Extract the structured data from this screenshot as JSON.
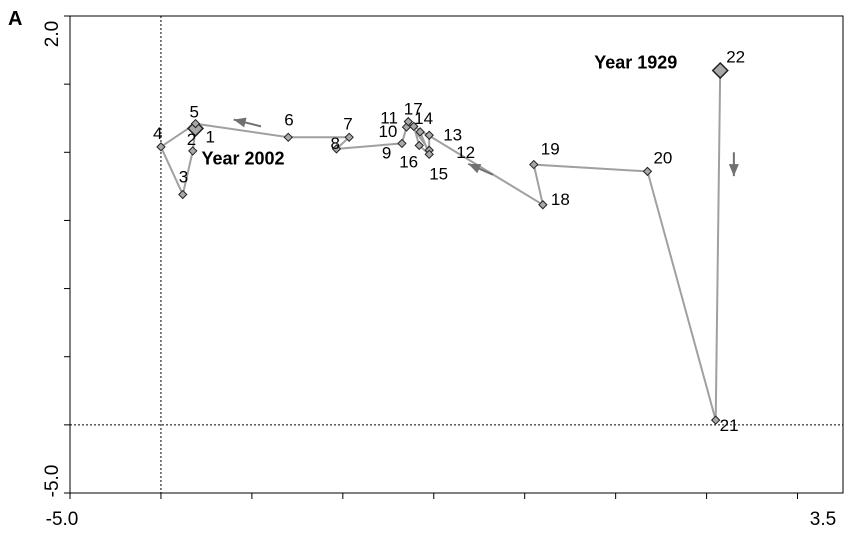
{
  "panel_label": "A",
  "chart_data": {
    "type": "scatter",
    "title": "",
    "xlabel": "",
    "ylabel": "",
    "xlim": [
      -5.0,
      3.5
    ],
    "ylim": [
      -5.0,
      2.0
    ],
    "x_tick_labels": [
      "-5.0",
      "3.5"
    ],
    "y_tick_labels": [
      "-5.0",
      "2.0"
    ],
    "reference_lines": {
      "x": -4.0,
      "y": -4.0
    },
    "connected": true,
    "line_color": "#a0a0a0",
    "marker_color": "#a8a8a8",
    "points": [
      {
        "label": "1",
        "x": -3.62,
        "y": 0.35
      },
      {
        "label": "2",
        "x": -3.65,
        "y": 0.02
      },
      {
        "label": "3",
        "x": -3.76,
        "y": -0.62
      },
      {
        "label": "4",
        "x": -4.0,
        "y": 0.08
      },
      {
        "label": "5",
        "x": -3.62,
        "y": 0.42
      },
      {
        "label": "6",
        "x": -2.6,
        "y": 0.22
      },
      {
        "label": "7",
        "x": -1.93,
        "y": 0.22
      },
      {
        "label": "8",
        "x": -2.07,
        "y": 0.05
      },
      {
        "label": "9",
        "x": -1.35,
        "y": 0.13
      },
      {
        "label": "10",
        "x": -1.3,
        "y": 0.37
      },
      {
        "label": "11",
        "x": -1.28,
        "y": 0.45
      },
      {
        "label": "12",
        "x": -1.05,
        "y": 0.03
      },
      {
        "label": "13",
        "x": -1.05,
        "y": 0.25
      },
      {
        "label": "14",
        "x": -1.15,
        "y": 0.3
      },
      {
        "label": "15",
        "x": -1.05,
        "y": -0.03
      },
      {
        "label": "16",
        "x": -1.16,
        "y": 0.1
      },
      {
        "label": "17",
        "x": -1.22,
        "y": 0.38
      },
      {
        "label": "18",
        "x": 0.2,
        "y": -0.77
      },
      {
        "label": "19",
        "x": 0.1,
        "y": -0.18
      },
      {
        "label": "20",
        "x": 1.35,
        "y": -0.28
      },
      {
        "label": "21",
        "x": 2.1,
        "y": -3.93
      },
      {
        "label": "22",
        "x": 2.15,
        "y": 1.2
      }
    ],
    "highlighted": [
      "1",
      "22"
    ],
    "annotations": [
      {
        "id": "year-2002",
        "text": "Year 2002",
        "point": "1"
      },
      {
        "id": "year-1929",
        "text": "Year 1929",
        "point": "22"
      }
    ],
    "arrows": [
      {
        "from": [
          -2.9,
          0.38
        ],
        "to": [
          -3.2,
          0.48
        ]
      },
      {
        "from": [
          -0.35,
          -0.33
        ],
        "to": [
          -0.62,
          -0.17
        ]
      },
      {
        "from": [
          2.3,
          0.0
        ],
        "to": [
          2.3,
          -0.35
        ]
      }
    ]
  }
}
